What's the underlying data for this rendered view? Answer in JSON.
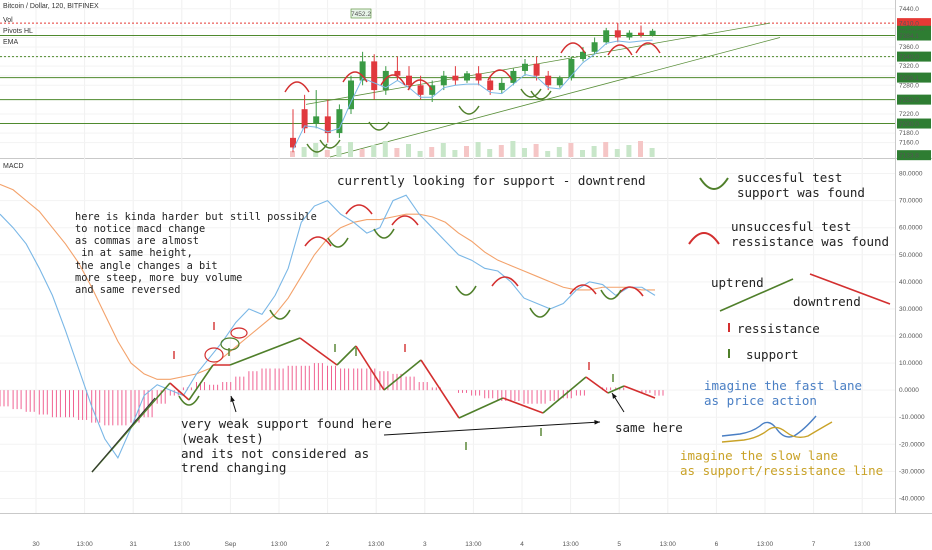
{
  "header": {
    "symbol": "Bitcoin / Dollar, 120, BITFINEX",
    "vol": "Vol",
    "pivots": "Pivots HL",
    "ema": "EMA",
    "macd": "MACD"
  },
  "price_axis": {
    "ticks": [
      "7440.0",
      "7400.0",
      "7380.0",
      "7360.0",
      "7340.0",
      "7320.0",
      "7300.0",
      "7280.0",
      "7250.0",
      "7220.0",
      "7200.0",
      "7180.0",
      "7160.0"
    ],
    "tags": [
      {
        "label": "7410.0",
        "color": "#e53935"
      },
      {
        "label": "00:00:00",
        "color": "#2e7d32"
      },
      {
        "label": "7384.1",
        "color": "#2e7d32"
      },
      {
        "label": "7340.0",
        "color": "#2e7d32"
      },
      {
        "label": "7296.1",
        "color": "#2e7d32"
      },
      {
        "label": "7250.0",
        "color": "#2e7d32"
      },
      {
        "label": "7200.0",
        "color": "#2e7d32"
      },
      {
        "label": "7133.8",
        "color": "#2e7d32"
      }
    ],
    "pivot_tag": "7452.2"
  },
  "macd_axis": {
    "ticks": [
      "80.0000",
      "70.0000",
      "60.0000",
      "50.0000",
      "40.0000",
      "30.0000",
      "20.0000",
      "10.0000",
      "0.0000",
      "-10.0000",
      "-20.0000",
      "-30.0000",
      "-40.0000"
    ]
  },
  "time_axis": {
    "labels": [
      "30",
      "13:00",
      "31",
      "13:00",
      "Sep",
      "13:00",
      "2",
      "13:00",
      "3",
      "13:00",
      "4",
      "13:00",
      "5",
      "13:00",
      "6",
      "13:00",
      "7",
      "13:00"
    ]
  },
  "annotations": {
    "title_note": "currently looking for support - downtrend",
    "left_note": "here is kinda harder but still possible\nto notice macd change\nas commas are almost\n in at same height,\nthe angle changes a bit\nmore steep, more buy volume\nand same reversed",
    "weak_note": "very weak support found here\n(weak test)\nand its not considered as\ntrend changing",
    "same_here": "same here",
    "legend_success": "succesful test\nsupport was found",
    "legend_fail": "unsuccesful test\nressistance was found",
    "legend_uptrend": "uptrend",
    "legend_downtrend": "downtrend",
    "legend_resistance": "ressistance",
    "legend_support": "support",
    "fast_lane": "imagine the fast lane\nas price action",
    "slow_lane": "imagine the slow lane\nas support/ressistance line"
  },
  "colors": {
    "up": "#26a69a",
    "down": "#ef5350",
    "green_candle": "#3a9a44",
    "red_candle": "#e0393e",
    "macd_line": "#7ab7e6",
    "signal_line": "#f3a26b",
    "histogram": "#f06292",
    "annot_green": "#4f7f2a",
    "annot_red": "#d32f2f",
    "note_blue": "#4a7fc4",
    "note_gold": "#c9a227"
  },
  "chart_data": [
    {
      "type": "candlestick",
      "title": "Bitcoin / Dollar, 120, BITFINEX",
      "ylim": [
        7130,
        7450
      ],
      "levels": [
        7410,
        7384.1,
        7340,
        7296.1,
        7250,
        7200
      ],
      "candles": [
        [
          7170,
          7230,
          7150,
          7140
        ],
        [
          7230,
          7260,
          7190,
          7180
        ],
        [
          7200,
          7270,
          7215,
          7190
        ],
        [
          7215,
          7250,
          7180,
          7160
        ],
        [
          7180,
          7240,
          7230,
          7170
        ],
        [
          7230,
          7300,
          7290,
          7220
        ],
        [
          7290,
          7350,
          7330,
          7280
        ],
        [
          7330,
          7345,
          7270,
          7250
        ],
        [
          7270,
          7320,
          7310,
          7260
        ],
        [
          7310,
          7340,
          7300,
          7290
        ],
        [
          7300,
          7320,
          7280,
          7270
        ],
        [
          7280,
          7300,
          7260,
          7250
        ],
        [
          7260,
          7290,
          7280,
          7245
        ],
        [
          7280,
          7310,
          7300,
          7270
        ],
        [
          7300,
          7320,
          7290,
          7280
        ],
        [
          7290,
          7310,
          7305,
          7285
        ],
        [
          7305,
          7320,
          7290,
          7280
        ],
        [
          7290,
          7300,
          7270,
          7260
        ],
        [
          7270,
          7295,
          7285,
          7262
        ],
        [
          7285,
          7315,
          7310,
          7280
        ],
        [
          7310,
          7335,
          7325,
          7300
        ],
        [
          7325,
          7340,
          7300,
          7290
        ],
        [
          7300,
          7310,
          7280,
          7270
        ],
        [
          7280,
          7300,
          7295,
          7275
        ],
        [
          7295,
          7340,
          7335,
          7290
        ],
        [
          7335,
          7360,
          7350,
          7330
        ],
        [
          7350,
          7380,
          7370,
          7345
        ],
        [
          7370,
          7400,
          7395,
          7365
        ],
        [
          7395,
          7410,
          7380,
          7370
        ],
        [
          7380,
          7395,
          7390,
          7375
        ],
        [
          7390,
          7405,
          7385,
          7380
        ],
        [
          7385,
          7398,
          7394,
          7382
        ]
      ]
    },
    {
      "type": "line",
      "title": "MACD",
      "ylim": [
        -45,
        85
      ],
      "x": [
        0,
        4,
        8,
        12,
        16,
        20,
        24,
        28,
        32,
        36,
        40,
        44,
        48,
        52,
        56,
        60,
        64,
        68,
        72,
        76,
        80,
        84,
        88,
        92,
        96,
        100,
        104,
        108,
        112,
        116,
        120,
        124,
        128,
        132,
        136,
        140,
        144,
        148,
        152,
        156,
        160,
        164,
        168,
        172,
        176,
        180,
        184,
        188,
        192,
        196,
        200
      ],
      "series": [
        {
          "values": [
            65,
            60,
            54,
            45,
            35,
            22,
            8,
            -6,
            -18,
            -25,
            -14,
            -2,
            2,
            0,
            -2,
            6,
            12,
            18,
            25,
            30,
            28,
            35,
            45,
            62,
            68,
            70,
            65,
            62,
            58,
            60,
            70,
            72,
            65,
            60,
            55,
            50,
            48,
            45,
            44,
            40,
            34,
            32,
            30,
            32,
            37,
            40,
            39,
            35,
            38,
            38,
            35
          ]
        },
        {
          "values": [
            76,
            74,
            70,
            66,
            60,
            54,
            47,
            38,
            28,
            18,
            10,
            6,
            4,
            4,
            5,
            6,
            8,
            12,
            16,
            20,
            24,
            28,
            34,
            42,
            50,
            56,
            60,
            62,
            63,
            63,
            64,
            65,
            65,
            64,
            62,
            58,
            55,
            51,
            48,
            46,
            44,
            42,
            40,
            38,
            37,
            37,
            38,
            38,
            38,
            37,
            37
          ]
        },
        {
          "values": [
            -6,
            -7,
            -8,
            -9,
            -10,
            -10,
            -11,
            -12,
            -13,
            -13,
            -12,
            -10,
            -5,
            -2,
            1,
            3,
            2,
            3,
            5,
            7,
            8,
            8,
            9,
            9,
            10,
            9,
            8,
            8,
            8,
            7,
            6,
            5,
            3,
            1,
            0,
            -1,
            -2,
            -3,
            -4,
            -4,
            -5,
            -5,
            -4,
            -3,
            -2,
            0,
            1,
            1,
            0,
            -1,
            -2
          ]
        }
      ]
    }
  ]
}
